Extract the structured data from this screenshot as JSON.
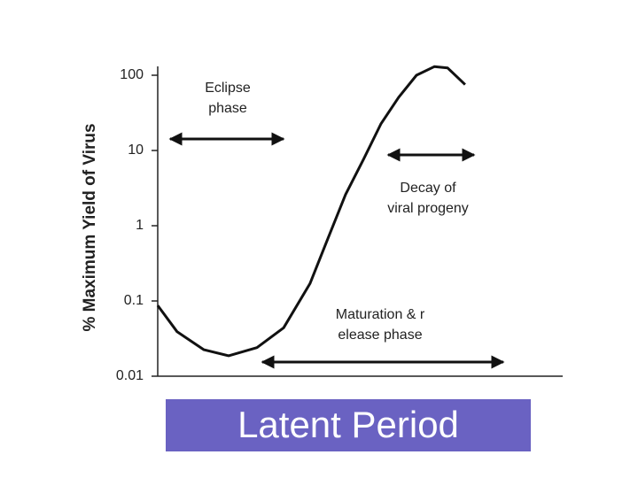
{
  "chart_data": {
    "type": "line",
    "y_label": "% Maximum Yield of Virus",
    "log_y": true,
    "ylim": [
      0.01,
      100
    ],
    "yticks": [
      0.01,
      0.1,
      1,
      10,
      100
    ],
    "xlim": [
      0,
      100
    ],
    "x": [
      0,
      4.8,
      11.4,
      17.5,
      24.5,
      31.1,
      37.6,
      42,
      46.4,
      50.8,
      55.1,
      59.5,
      63.9,
      68.3,
      71.6,
      75.9
    ],
    "series": [
      {
        "color": "#111111",
        "values": [
          0.087,
          0.039,
          0.0225,
          0.0187,
          0.024,
          0.044,
          0.17,
          0.67,
          2.6,
          7.6,
          22.5,
          51,
          100,
          130,
          125,
          75
        ]
      }
    ],
    "annotations": [
      {
        "text": "Eclipse phase"
      },
      {
        "text": "Decay of viral progeny"
      },
      {
        "text": "Maturation & release phase"
      }
    ],
    "banner": "Latent Period"
  }
}
